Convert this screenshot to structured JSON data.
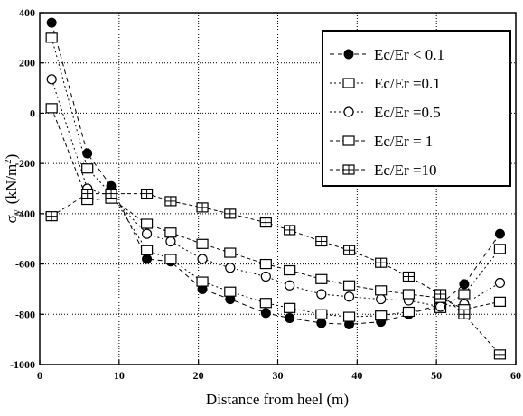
{
  "chart_data": {
    "type": "line",
    "xlabel": "Distance from heel (m)",
    "ylabel_symbol": "σ",
    "ylabel_subscript": "y",
    "ylabel_units": "(kN/m",
    "ylabel_units_sup": "2",
    "ylabel_units_close": ")",
    "xlim": [
      0,
      60
    ],
    "ylim": [
      -1000,
      400
    ],
    "xticks": [
      0,
      10,
      20,
      30,
      40,
      50,
      60
    ],
    "yticks": [
      400,
      200,
      0,
      -200,
      -400,
      -600,
      -800,
      -1000
    ],
    "ytick_labels": [
      "400",
      "200",
      "0",
      "-200",
      "-400",
      "-600",
      "-800",
      "-1000"
    ],
    "xtick_labels": [
      "0",
      "10",
      "20",
      "30",
      "40",
      "50",
      "60"
    ],
    "grid": true,
    "legend_position": "top-right",
    "series": [
      {
        "name": "Ec/Er < 0.1",
        "marker": "filled-circle",
        "dash": "5,4",
        "x": [
          1.5,
          6,
          9,
          13.5,
          16.5,
          20.5,
          24,
          28.5,
          31.5,
          35.5,
          39,
          43,
          46.5,
          50.5,
          53.5,
          58
        ],
        "y": [
          360,
          -160,
          -290,
          -580,
          -590,
          -700,
          -740,
          -795,
          -815,
          -835,
          -840,
          -830,
          -800,
          -760,
          -680,
          -480
        ]
      },
      {
        "name": "Ec/Er =0.1",
        "marker": "open-square",
        "dash": "2,3",
        "x": [
          1.5,
          6,
          9,
          13.5,
          16.5,
          20.5,
          24,
          28.5,
          31.5,
          35.5,
          39,
          43,
          46.5,
          50.5,
          53.5,
          58
        ],
        "y": [
          300,
          -220,
          -320,
          -545,
          -580,
          -670,
          -710,
          -755,
          -775,
          -800,
          -810,
          -805,
          -790,
          -775,
          -720,
          -540
        ]
      },
      {
        "name": "Ec/Er =0.5",
        "marker": "open-circle",
        "dash": "2,3",
        "x": [
          1.5,
          6,
          9,
          13.5,
          16.5,
          20.5,
          24,
          28.5,
          31.5,
          35.5,
          39,
          43,
          46.5,
          50.5,
          53.5,
          58
        ],
        "y": [
          135,
          -300,
          -330,
          -480,
          -510,
          -580,
          -615,
          -650,
          -685,
          -720,
          -730,
          -740,
          -745,
          -770,
          -760,
          -675
        ]
      },
      {
        "name": "Ec/Er = 1",
        "marker": "open-square",
        "dash": "4,3",
        "x": [
          1.5,
          6,
          9,
          13.5,
          16.5,
          20.5,
          24,
          28.5,
          31.5,
          35.5,
          39,
          43,
          46.5,
          50.5,
          53.5,
          58
        ],
        "y": [
          20,
          -345,
          -340,
          -440,
          -475,
          -520,
          -555,
          -600,
          -625,
          -660,
          -685,
          -705,
          -720,
          -735,
          -780,
          -750
        ]
      },
      {
        "name": "Ec/Er =10",
        "marker": "boxed-plus",
        "dash": "4,3",
        "x": [
          1.5,
          6,
          9,
          13.5,
          16.5,
          20.5,
          24,
          28.5,
          31.5,
          35.5,
          39,
          43,
          46.5,
          50.5,
          53.5,
          58
        ],
        "y": [
          -410,
          -320,
          -320,
          -320,
          -350,
          -375,
          -400,
          -435,
          -465,
          -510,
          -545,
          -595,
          -650,
          -720,
          -800,
          -960
        ]
      }
    ]
  }
}
